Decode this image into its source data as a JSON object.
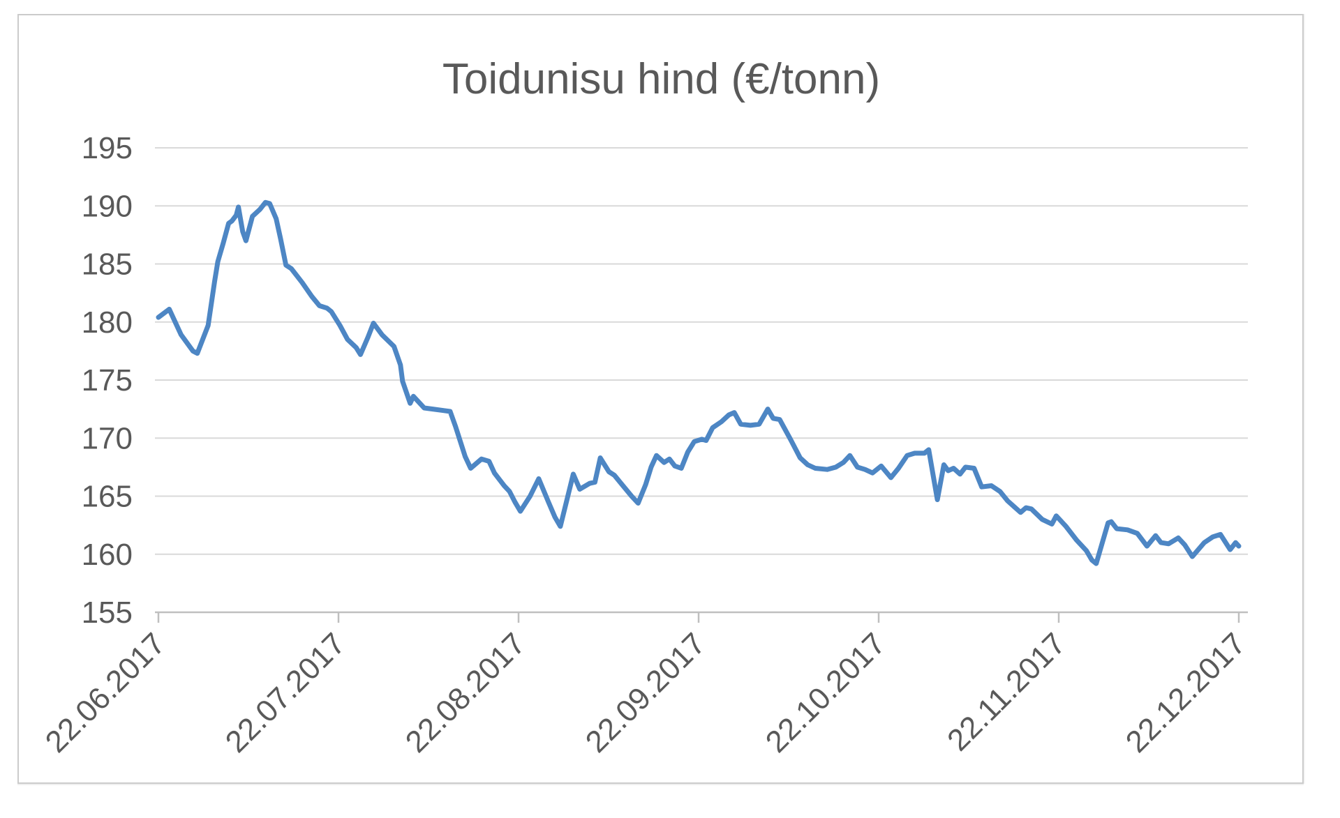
{
  "chart_data": {
    "type": "line",
    "title": "Toidunisu hind (€/tonn)",
    "series_name": "Toidunisu hind",
    "y_unit": "€/tonn",
    "ylim": [
      155,
      195
    ],
    "y_ticks": [
      155,
      160,
      165,
      170,
      175,
      180,
      185,
      190,
      195
    ],
    "x_tick_labels": [
      "22.06.2017",
      "22.07.2017",
      "22.08.2017",
      "22.09.2017",
      "22.10.2017",
      "22.11.2017",
      "22.12.2017"
    ],
    "x_range": [
      "22.06.2017",
      "22.12.2017"
    ],
    "x_note": "daily price series; point x stored as fraction of the horizontal axis span 22.06.2017 - 22.12.2017",
    "grid": true,
    "legend": false,
    "colors": {
      "line": "#4d86c4",
      "gridline": "#d9d9d9",
      "axis": "#bfbfbf",
      "text": "#595959",
      "background": "#ffffff",
      "frame_border": "#cbcbcb"
    },
    "points": [
      [
        0.0,
        180.4
      ],
      [
        0.01,
        181.1
      ],
      [
        0.021,
        178.9
      ],
      [
        0.032,
        177.5
      ],
      [
        0.036,
        177.3
      ],
      [
        0.046,
        179.7
      ],
      [
        0.052,
        183.5
      ],
      [
        0.055,
        185.2
      ],
      [
        0.06,
        186.8
      ],
      [
        0.065,
        188.5
      ],
      [
        0.068,
        188.7
      ],
      [
        0.072,
        189.2
      ],
      [
        0.074,
        189.9
      ],
      [
        0.078,
        187.8
      ],
      [
        0.081,
        187.0
      ],
      [
        0.087,
        189.1
      ],
      [
        0.094,
        189.7
      ],
      [
        0.099,
        190.3
      ],
      [
        0.103,
        190.2
      ],
      [
        0.109,
        188.9
      ],
      [
        0.113,
        187.2
      ],
      [
        0.118,
        184.9
      ],
      [
        0.123,
        184.6
      ],
      [
        0.133,
        183.4
      ],
      [
        0.142,
        182.2
      ],
      [
        0.149,
        181.4
      ],
      [
        0.156,
        181.2
      ],
      [
        0.16,
        180.9
      ],
      [
        0.168,
        179.7
      ],
      [
        0.175,
        178.5
      ],
      [
        0.183,
        177.8
      ],
      [
        0.187,
        177.2
      ],
      [
        0.194,
        178.7
      ],
      [
        0.199,
        179.9
      ],
      [
        0.207,
        178.9
      ],
      [
        0.218,
        177.9
      ],
      [
        0.224,
        176.3
      ],
      [
        0.226,
        174.9
      ],
      [
        0.233,
        173.0
      ],
      [
        0.236,
        173.6
      ],
      [
        0.246,
        172.6
      ],
      [
        0.254,
        172.5
      ],
      [
        0.27,
        172.3
      ],
      [
        0.275,
        171.0
      ],
      [
        0.284,
        168.4
      ],
      [
        0.289,
        167.4
      ],
      [
        0.299,
        168.2
      ],
      [
        0.306,
        168.0
      ],
      [
        0.311,
        167.0
      ],
      [
        0.32,
        165.9
      ],
      [
        0.325,
        165.4
      ],
      [
        0.33,
        164.5
      ],
      [
        0.335,
        163.7
      ],
      [
        0.344,
        165.0
      ],
      [
        0.352,
        166.5
      ],
      [
        0.361,
        164.5
      ],
      [
        0.367,
        163.2
      ],
      [
        0.372,
        162.4
      ],
      [
        0.384,
        166.9
      ],
      [
        0.39,
        165.6
      ],
      [
        0.399,
        166.1
      ],
      [
        0.404,
        166.2
      ],
      [
        0.409,
        168.3
      ],
      [
        0.417,
        167.1
      ],
      [
        0.422,
        166.8
      ],
      [
        0.43,
        165.9
      ],
      [
        0.438,
        165.0
      ],
      [
        0.444,
        164.4
      ],
      [
        0.451,
        166.0
      ],
      [
        0.456,
        167.5
      ],
      [
        0.461,
        168.5
      ],
      [
        0.468,
        167.9
      ],
      [
        0.473,
        168.2
      ],
      [
        0.478,
        167.6
      ],
      [
        0.484,
        167.4
      ],
      [
        0.49,
        168.8
      ],
      [
        0.496,
        169.7
      ],
      [
        0.503,
        169.9
      ],
      [
        0.507,
        169.8
      ],
      [
        0.513,
        170.9
      ],
      [
        0.521,
        171.4
      ],
      [
        0.528,
        172.0
      ],
      [
        0.533,
        172.2
      ],
      [
        0.539,
        171.2
      ],
      [
        0.548,
        171.1
      ],
      [
        0.556,
        171.2
      ],
      [
        0.564,
        172.5
      ],
      [
        0.569,
        171.7
      ],
      [
        0.575,
        171.6
      ],
      [
        0.585,
        169.9
      ],
      [
        0.594,
        168.3
      ],
      [
        0.601,
        167.7
      ],
      [
        0.608,
        167.4
      ],
      [
        0.619,
        167.3
      ],
      [
        0.627,
        167.5
      ],
      [
        0.634,
        167.9
      ],
      [
        0.64,
        168.5
      ],
      [
        0.647,
        167.5
      ],
      [
        0.654,
        167.3
      ],
      [
        0.661,
        167.0
      ],
      [
        0.669,
        167.6
      ],
      [
        0.678,
        166.6
      ],
      [
        0.685,
        167.4
      ],
      [
        0.693,
        168.5
      ],
      [
        0.7,
        168.7
      ],
      [
        0.709,
        168.7
      ],
      [
        0.713,
        169.0
      ],
      [
        0.721,
        164.7
      ],
      [
        0.727,
        167.7
      ],
      [
        0.731,
        167.2
      ],
      [
        0.736,
        167.4
      ],
      [
        0.742,
        166.9
      ],
      [
        0.747,
        167.5
      ],
      [
        0.755,
        167.4
      ],
      [
        0.762,
        165.8
      ],
      [
        0.771,
        165.9
      ],
      [
        0.779,
        165.4
      ],
      [
        0.786,
        164.6
      ],
      [
        0.792,
        164.1
      ],
      [
        0.798,
        163.6
      ],
      [
        0.803,
        164.0
      ],
      [
        0.808,
        163.9
      ],
      [
        0.818,
        163.0
      ],
      [
        0.827,
        162.6
      ],
      [
        0.831,
        163.3
      ],
      [
        0.84,
        162.4
      ],
      [
        0.85,
        161.2
      ],
      [
        0.859,
        160.3
      ],
      [
        0.864,
        159.5
      ],
      [
        0.868,
        159.2
      ],
      [
        0.879,
        162.7
      ],
      [
        0.882,
        162.8
      ],
      [
        0.887,
        162.2
      ],
      [
        0.897,
        162.1
      ],
      [
        0.906,
        161.8
      ],
      [
        0.915,
        160.7
      ],
      [
        0.923,
        161.6
      ],
      [
        0.928,
        161.0
      ],
      [
        0.935,
        160.9
      ],
      [
        0.944,
        161.4
      ],
      [
        0.95,
        160.8
      ],
      [
        0.957,
        159.8
      ],
      [
        0.968,
        161.0
      ],
      [
        0.976,
        161.5
      ],
      [
        0.983,
        161.7
      ],
      [
        0.992,
        160.4
      ],
      [
        0.997,
        161.0
      ],
      [
        1.0,
        160.7
      ]
    ]
  }
}
